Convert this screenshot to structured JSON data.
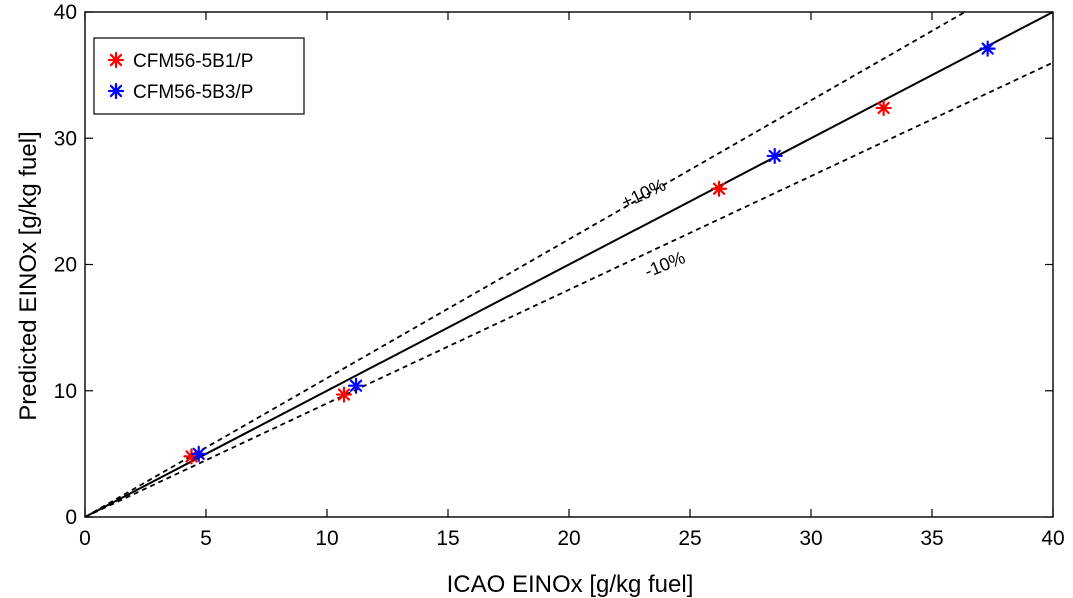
{
  "chart_data": {
    "type": "scatter",
    "xlabel": "ICAO EINOx [g/kg fuel]",
    "ylabel": "Predicted EINOx [g/kg fuel]",
    "xlim": [
      0,
      40
    ],
    "ylim": [
      0,
      40
    ],
    "xticks": [
      "0",
      "5",
      "10",
      "15",
      "20",
      "25",
      "30",
      "35",
      "40"
    ],
    "yticks": [
      "0",
      "10",
      "20",
      "30",
      "40"
    ],
    "grid": false,
    "legend_position": "top-left",
    "series": [
      {
        "name": "CFM56-5B1/P",
        "color": "#ff0000",
        "marker": "asterisk",
        "x": [
          4.4,
          10.7,
          26.2,
          33.0
        ],
        "y": [
          4.8,
          9.7,
          26.0,
          32.4
        ]
      },
      {
        "name": "CFM56-5B3/P",
        "color": "#0000ff",
        "marker": "asterisk",
        "x": [
          4.7,
          11.2,
          28.5,
          37.3
        ],
        "y": [
          5.0,
          10.4,
          28.6,
          37.1
        ]
      }
    ],
    "reference_lines": [
      {
        "slope": 1.0,
        "style": "solid",
        "label": ""
      },
      {
        "slope": 1.1,
        "style": "dashed",
        "label": "+10%"
      },
      {
        "slope": 0.9,
        "style": "dashed",
        "label": "-10%"
      }
    ]
  }
}
